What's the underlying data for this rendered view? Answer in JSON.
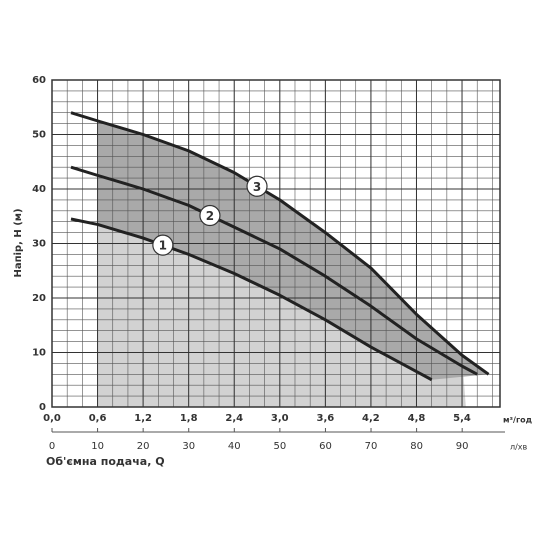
{
  "chart_data": {
    "type": "line",
    "y_label": "Напір, H (м)",
    "x_label": "Об'ємна подача, Q",
    "x_unit": "м³/год",
    "x2_unit": "л/хв",
    "xlim": [
      0,
      5.9
    ],
    "ylim": [
      0,
      60
    ],
    "x2lim": [
      0,
      98.3
    ],
    "xticks": [
      {
        "value": 0,
        "label": "0,0"
      },
      {
        "value": 0.6,
        "label": "0,6"
      },
      {
        "value": 1.2,
        "label": "1,2"
      },
      {
        "value": 1.8,
        "label": "1,8"
      },
      {
        "value": 2.4,
        "label": "2,4"
      },
      {
        "value": 3.0,
        "label": "3,0"
      },
      {
        "value": 3.6,
        "label": "3,6"
      },
      {
        "value": 4.2,
        "label": "4,2"
      },
      {
        "value": 4.8,
        "label": "4,8"
      },
      {
        "value": 5.4,
        "label": "5,4"
      }
    ],
    "x2ticks": [
      0,
      10,
      20,
      30,
      40,
      50,
      60,
      70,
      80,
      90
    ],
    "yticks": [
      0,
      10,
      20,
      30,
      40,
      50,
      60
    ],
    "grid": true,
    "series": [
      {
        "name": "1",
        "color": "#222222",
        "x": [
          0.25,
          0.6,
          1.2,
          1.8,
          2.4,
          3.0,
          3.6,
          4.2,
          4.8,
          5.0
        ],
        "values": [
          34.5,
          33.5,
          31,
          28,
          24.5,
          20.5,
          16,
          11,
          6.5,
          5
        ]
      },
      {
        "name": "2",
        "color": "#222222",
        "x": [
          0.25,
          0.6,
          1.2,
          1.8,
          2.4,
          3.0,
          3.6,
          4.2,
          4.8,
          5.4,
          5.6
        ],
        "values": [
          44,
          42.5,
          40,
          37,
          33,
          29,
          24,
          18.5,
          12.5,
          7.5,
          6
        ]
      },
      {
        "name": "3",
        "color": "#222222",
        "x": [
          0.25,
          0.6,
          1.2,
          1.8,
          2.4,
          3.0,
          3.6,
          4.2,
          4.8,
          5.4,
          5.75
        ],
        "values": [
          54,
          52.5,
          50,
          47,
          43,
          38,
          32,
          25.5,
          17,
          9.5,
          6
        ]
      }
    ]
  }
}
